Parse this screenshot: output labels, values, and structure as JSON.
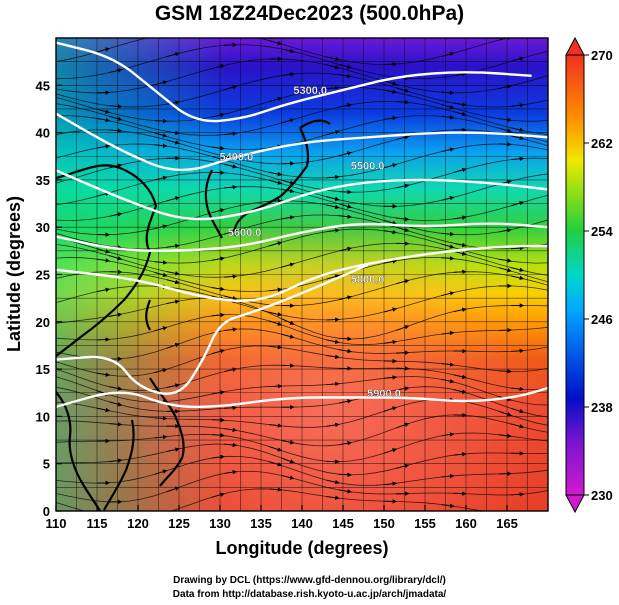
{
  "title": "GSM 18Z24Dec2023 (500.0hPa)",
  "credits": [
    "Drawing by DCL (https://www.gfd-dennou.org/library/dcl/)",
    "Data from http://database.rish.kyoto-u.ac.jp/arch/jmadata/"
  ],
  "chart_data": {
    "type": "heatmap",
    "xlabel": "Longitude (degrees)",
    "ylabel": "Latitude  (degrees)",
    "xlim": [
      110,
      170
    ],
    "ylim": [
      0,
      50
    ],
    "x_ticks": [
      110,
      115,
      120,
      125,
      130,
      135,
      140,
      145,
      150,
      155,
      160,
      165
    ],
    "y_ticks": [
      0,
      5,
      10,
      15,
      20,
      25,
      30,
      35,
      40,
      45
    ],
    "colorbar": {
      "min": 230,
      "max": 270,
      "ticks": [
        230,
        238,
        246,
        254,
        262,
        270
      ],
      "colors": [
        "#d01ad0",
        "#0010c8",
        "#00a8ff",
        "#00d8c8",
        "#20d040",
        "#f0e800",
        "#ff8c00",
        "#f03020"
      ]
    },
    "contours": [
      {
        "label": "5300.0",
        "points": [
          [
            110,
            49.5
          ],
          [
            117,
            48
          ],
          [
            122,
            44.5
          ],
          [
            127,
            41
          ],
          [
            133,
            41.5
          ],
          [
            138,
            43
          ],
          [
            145,
            44.5
          ],
          [
            152,
            46
          ],
          [
            160,
            46.5
          ],
          [
            168,
            46
          ]
        ]
      },
      {
        "label": "5400.0",
        "points": [
          [
            110,
            42
          ],
          [
            118,
            38
          ],
          [
            125,
            35.5
          ],
          [
            132,
            37.5
          ],
          [
            140,
            39
          ],
          [
            148,
            39.5
          ],
          [
            156,
            40
          ],
          [
            163,
            40
          ],
          [
            170,
            39.5
          ]
        ]
      },
      {
        "label": "5500.0",
        "points": [
          [
            110,
            36
          ],
          [
            118,
            33
          ],
          [
            126,
            30.5
          ],
          [
            134,
            31.5
          ],
          [
            142,
            34
          ],
          [
            150,
            35
          ],
          [
            158,
            35
          ],
          [
            165,
            34.5
          ],
          [
            170,
            34
          ]
        ]
      },
      {
        "label": "5600.0",
        "points": [
          [
            110,
            29
          ],
          [
            118,
            27.5
          ],
          [
            126,
            27.5
          ],
          [
            133,
            28
          ],
          [
            140,
            29.5
          ],
          [
            147,
            30.5
          ],
          [
            155,
            30
          ],
          [
            163,
            30.5
          ],
          [
            170,
            30
          ]
        ]
      },
      {
        "label": "5800.0",
        "points": [
          [
            110,
            25.5
          ],
          [
            120,
            24.5
          ],
          [
            128,
            22.5
          ],
          [
            135,
            22
          ],
          [
            142,
            25
          ],
          [
            150,
            26.5
          ],
          [
            158,
            27.5
          ],
          [
            165,
            28
          ],
          [
            170,
            28
          ]
        ]
      },
      {
        "label": "5900.0",
        "points": [
          [
            110,
            16
          ],
          [
            117,
            16.5
          ],
          [
            120,
            13
          ],
          [
            125,
            12
          ],
          [
            128,
            16
          ],
          [
            130,
            20
          ],
          [
            134,
            21
          ],
          [
            140,
            23
          ],
          [
            148,
            26
          ]
        ]
      },
      {
        "label": "5900.0",
        "points": [
          [
            110,
            11
          ],
          [
            118,
            13
          ],
          [
            124,
            11
          ],
          [
            130,
            11
          ],
          [
            138,
            12
          ],
          [
            146,
            12
          ],
          [
            153,
            12
          ],
          [
            160,
            11.5
          ],
          [
            166,
            12
          ],
          [
            170,
            13
          ]
        ]
      }
    ],
    "contour_labels": [
      {
        "text": "5300.0",
        "lon": 141,
        "lat": 44.5
      },
      {
        "text": "5400.0",
        "lon": 132,
        "lat": 37.5
      },
      {
        "text": "5500.0",
        "lon": 148,
        "lat": 36.5
      },
      {
        "text": "5600.0",
        "lon": 133,
        "lat": 29.5
      },
      {
        "text": "5800.0",
        "lon": 148,
        "lat": 24.5
      },
      {
        "text": "5900.0",
        "lon": 150,
        "lat": 12.5
      }
    ]
  }
}
